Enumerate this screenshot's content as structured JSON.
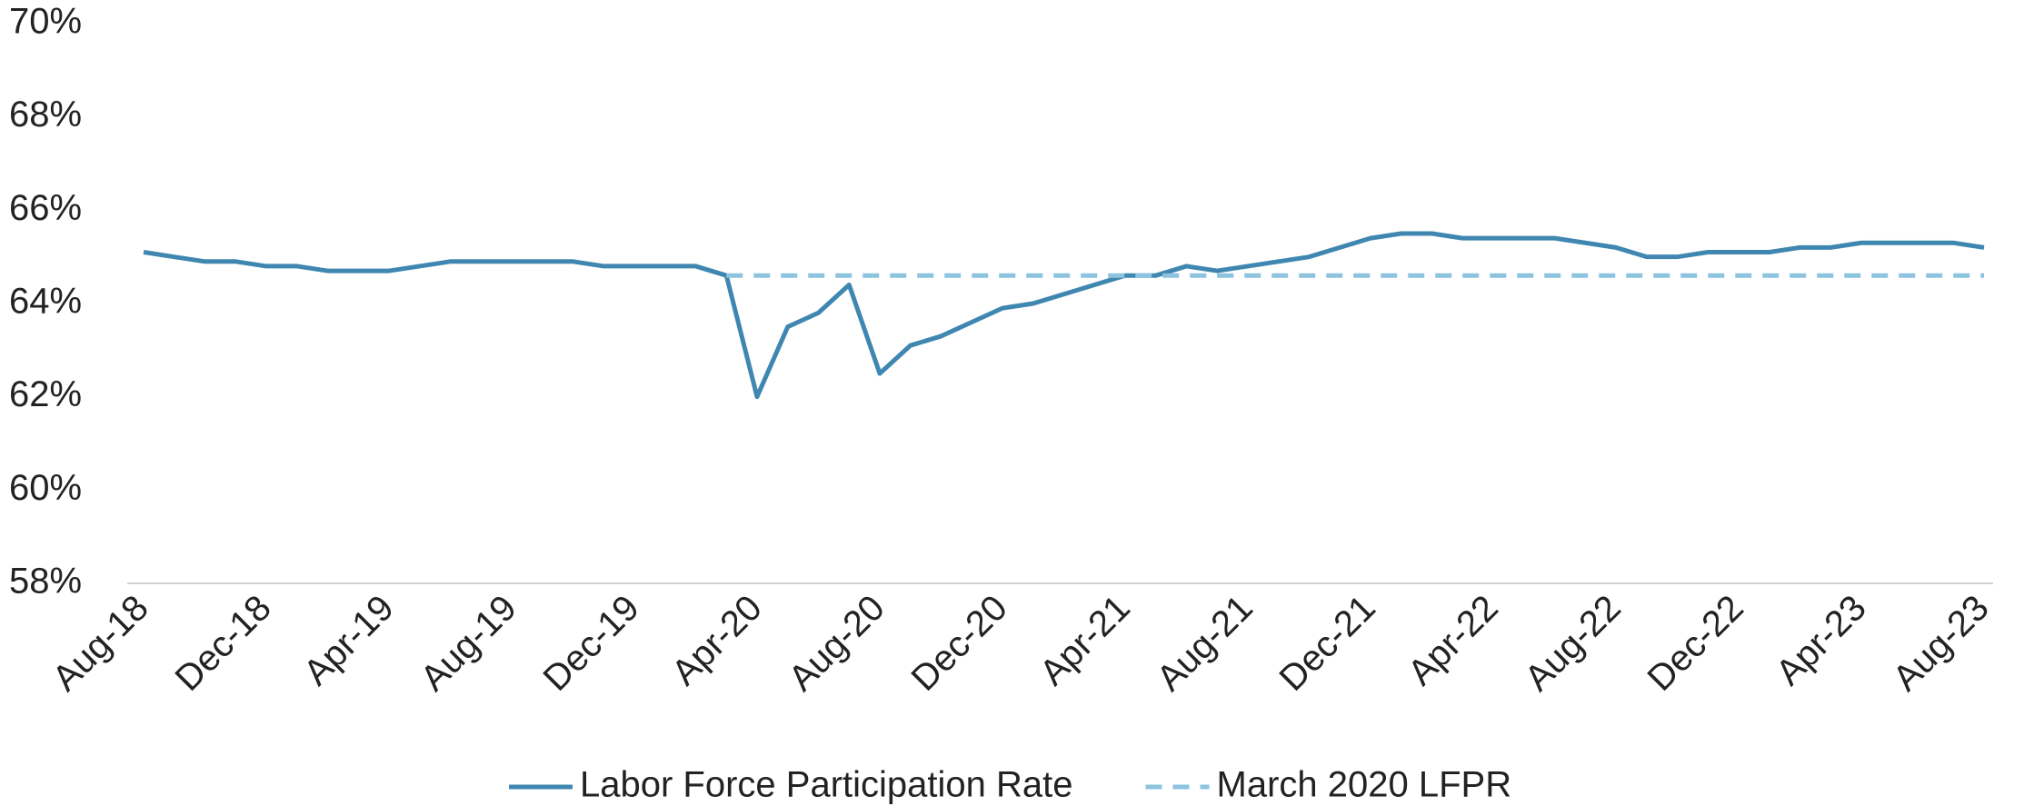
{
  "chart_data": {
    "type": "line",
    "categories": [
      "Aug-18",
      null,
      null,
      null,
      "Dec-18",
      null,
      null,
      null,
      "Apr-19",
      null,
      null,
      null,
      "Aug-19",
      null,
      null,
      null,
      "Dec-19",
      null,
      null,
      null,
      "Apr-20",
      null,
      null,
      null,
      "Aug-20",
      null,
      null,
      null,
      "Dec-20",
      null,
      null,
      null,
      "Apr-21",
      null,
      null,
      null,
      "Aug-21",
      null,
      null,
      null,
      "Dec-21",
      null,
      null,
      null,
      "Apr-22",
      null,
      null,
      null,
      "Aug-22",
      null,
      null,
      null,
      "Dec-22",
      null,
      null,
      null,
      "Apr-23",
      null,
      null,
      null,
      "Aug-23"
    ],
    "series": [
      {
        "name": "Labor Force Participation Rate",
        "color": "#3f87b0",
        "dashed": false,
        "values": [
          65.1,
          65.0,
          64.9,
          64.9,
          64.8,
          64.8,
          64.7,
          64.7,
          64.7,
          64.8,
          64.9,
          64.9,
          64.9,
          64.9,
          64.9,
          64.8,
          64.8,
          64.8,
          64.8,
          64.6,
          62.0,
          63.5,
          63.8,
          64.4,
          62.5,
          63.1,
          63.3,
          63.6,
          63.9,
          64.0,
          64.2,
          64.4,
          64.6,
          64.6,
          64.8,
          64.7,
          64.8,
          64.9,
          65.0,
          65.2,
          65.4,
          65.5,
          65.5,
          65.4,
          65.4,
          65.4,
          65.4,
          65.3,
          65.2,
          65.0,
          65.0,
          65.1,
          65.1,
          65.1,
          65.2,
          65.2,
          65.3,
          65.3,
          65.3,
          65.3,
          65.2
        ]
      },
      {
        "name": "March 2020 LFPR",
        "color": "#8cc3de",
        "dashed": true,
        "values": [
          null,
          null,
          null,
          null,
          null,
          null,
          null,
          null,
          null,
          null,
          null,
          null,
          null,
          null,
          null,
          null,
          null,
          null,
          null,
          64.6,
          64.6,
          64.6,
          64.6,
          64.6,
          64.6,
          64.6,
          64.6,
          64.6,
          64.6,
          64.6,
          64.6,
          64.6,
          64.6,
          64.6,
          64.6,
          64.6,
          64.6,
          64.6,
          64.6,
          64.6,
          64.6,
          64.6,
          64.6,
          64.6,
          64.6,
          64.6,
          64.6,
          64.6,
          64.6,
          64.6,
          64.6,
          64.6,
          64.6,
          64.6,
          64.6,
          64.6,
          64.6,
          64.6,
          64.6,
          64.6,
          64.6
        ]
      }
    ],
    "ylim": [
      58,
      70
    ],
    "yticks": [
      {
        "value": 58,
        "label": "58%"
      },
      {
        "value": 60,
        "label": "60%"
      },
      {
        "value": 62,
        "label": "62%"
      },
      {
        "value": 64,
        "label": "64%"
      },
      {
        "value": 66,
        "label": "66%"
      },
      {
        "value": 68,
        "label": "68%"
      },
      {
        "value": 70,
        "label": "70%"
      }
    ],
    "grid": false,
    "legend": "bottom"
  }
}
